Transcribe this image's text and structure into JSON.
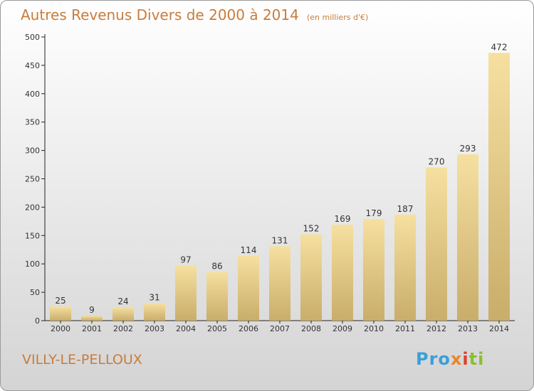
{
  "title": "Autres Revenus Divers de 2000 à 2014",
  "subtitle": "(en milliers d'€)",
  "commune": "VILLY-LE-PELLOUX",
  "logo": {
    "p1": "Pro",
    "p2": "x",
    "p3": "i",
    "p4": "ti"
  },
  "colors": {
    "bar_light": "#f6e0a0",
    "bar_dark": "#c9ad6a",
    "title": "#c87c3c"
  },
  "chart_data": {
    "type": "bar",
    "title": "Autres Revenus Divers de 2000 à 2014",
    "subtitle": "(en milliers d'€)",
    "categories": [
      "2000",
      "2001",
      "2002",
      "2003",
      "2004",
      "2005",
      "2006",
      "2007",
      "2008",
      "2009",
      "2010",
      "2011",
      "2012",
      "2013",
      "2014"
    ],
    "values": [
      25,
      9,
      24,
      31,
      97,
      86,
      114,
      131,
      152,
      169,
      179,
      187,
      270,
      293,
      472
    ],
    "ylim": [
      0,
      500
    ],
    "yticks": [
      0,
      50,
      100,
      150,
      200,
      250,
      300,
      350,
      400,
      450,
      500
    ],
    "grid": false,
    "legend": "none"
  }
}
